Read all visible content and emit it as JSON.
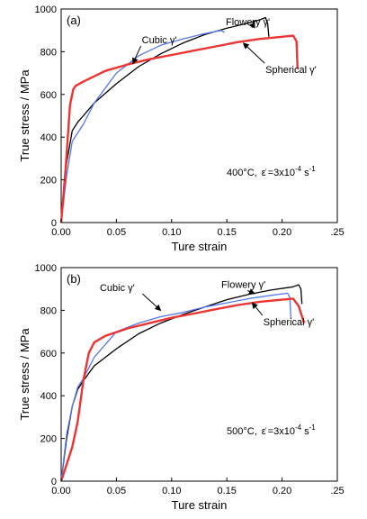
{
  "chart_data": [
    {
      "type": "line",
      "panel_label": "(a)",
      "xlabel": "Ture strain",
      "ylabel": "True stress / MPa",
      "xlim": [
        0.0,
        0.25
      ],
      "ylim": [
        0,
        1000
      ],
      "xticks": [
        "0.00",
        "0.05",
        "0.10",
        "0.15",
        "0.20",
        ".25"
      ],
      "yticks": [
        "0",
        "200",
        "400",
        "600",
        "800",
        "1000"
      ],
      "condition": {
        "temp": "400",
        "unit": "°C,",
        "rate_prefix": "=3x10",
        "rate_exp": "-4",
        "rate_unit": " s",
        "rate_unit_exp": "-1"
      },
      "series": [
        {
          "name": "Flowery γ'",
          "color": "#000000",
          "x": [
            0,
            0.005,
            0.01,
            0.015,
            0.02,
            0.03,
            0.05,
            0.07,
            0.09,
            0.11,
            0.13,
            0.15,
            0.17,
            0.18,
            0.185,
            0.187,
            0.188
          ],
          "y": [
            0,
            280,
            430,
            470,
            500,
            560,
            650,
            730,
            790,
            840,
            880,
            910,
            935,
            950,
            960,
            930,
            870
          ]
        },
        {
          "name": "Cubic γ'",
          "color": "#5577ee",
          "x": [
            0,
            0.005,
            0.01,
            0.015,
            0.02,
            0.03,
            0.05,
            0.07,
            0.09,
            0.11,
            0.13,
            0.145,
            0.148
          ],
          "y": [
            0,
            220,
            380,
            420,
            460,
            560,
            700,
            780,
            830,
            860,
            885,
            900,
            890
          ]
        },
        {
          "name": "Spherical γ'",
          "color": "#ee3333",
          "x": [
            0,
            0.004,
            0.008,
            0.011,
            0.013,
            0.02,
            0.04,
            0.06,
            0.08,
            0.1,
            0.12,
            0.14,
            0.16,
            0.18,
            0.2,
            0.21,
            0.213,
            0.214
          ],
          "y": [
            0,
            250,
            550,
            625,
            640,
            660,
            710,
            740,
            765,
            785,
            805,
            825,
            845,
            860,
            870,
            875,
            850,
            720
          ]
        }
      ],
      "annotations": [
        {
          "label": "Flowery γ'",
          "x": 0.149,
          "y": 925,
          "arrow": [
            0.175,
            938
          ]
        },
        {
          "label": "Cubic γ'",
          "x": 0.073,
          "y": 840,
          "arrow": [
            0.065,
            745
          ]
        },
        {
          "label": "Spherical γ'",
          "x": 0.185,
          "y": 700,
          "arrow": [
            0.165,
            840
          ]
        }
      ]
    },
    {
      "type": "line",
      "panel_label": "(b)",
      "xlabel": "Ture strain",
      "ylabel": "True stress / MPa",
      "xlim": [
        0.0,
        0.25
      ],
      "ylim": [
        0,
        1000
      ],
      "xticks": [
        "0.00",
        "0.05",
        "0.10",
        "0.15",
        "0.20",
        ".25"
      ],
      "yticks": [
        "0",
        "200",
        "400",
        "600",
        "800",
        "1000"
      ],
      "condition": {
        "temp": "500",
        "unit": "°C,",
        "rate_prefix": "=3x10",
        "rate_exp": "-4",
        "rate_unit": " s",
        "rate_unit_exp": "-1"
      },
      "series": [
        {
          "name": "Flowery γ'",
          "color": "#000000",
          "x": [
            0,
            0.005,
            0.01,
            0.015,
            0.02,
            0.03,
            0.05,
            0.07,
            0.09,
            0.11,
            0.13,
            0.15,
            0.17,
            0.19,
            0.21,
            0.215,
            0.217,
            0.218
          ],
          "y": [
            0,
            200,
            350,
            430,
            470,
            540,
            620,
            690,
            740,
            780,
            815,
            850,
            875,
            895,
            910,
            920,
            900,
            830
          ]
        },
        {
          "name": "Cubic γ'",
          "color": "#5577ee",
          "x": [
            0,
            0.005,
            0.01,
            0.015,
            0.02,
            0.03,
            0.05,
            0.07,
            0.09,
            0.11,
            0.13,
            0.15,
            0.17,
            0.19,
            0.205,
            0.207,
            0.208
          ],
          "y": [
            0,
            220,
            350,
            440,
            480,
            580,
            700,
            740,
            770,
            790,
            815,
            835,
            855,
            870,
            880,
            860,
            760
          ]
        },
        {
          "name": "Spherical γ'",
          "color": "#ee3333",
          "x": [
            0,
            0.01,
            0.015,
            0.02,
            0.025,
            0.03,
            0.04,
            0.06,
            0.08,
            0.1,
            0.12,
            0.14,
            0.16,
            0.18,
            0.2,
            0.21,
            0.215,
            0.22
          ],
          "y": [
            0,
            160,
            280,
            470,
            600,
            650,
            680,
            715,
            740,
            765,
            785,
            805,
            825,
            840,
            850,
            855,
            820,
            740
          ]
        }
      ],
      "annotations": [
        {
          "label": "Flowery γ'",
          "x": 0.145,
          "y": 905,
          "arrow": [
            0.175,
            878
          ]
        },
        {
          "label": "Cubic γ'",
          "x": 0.035,
          "y": 890,
          "arrow": [
            0.09,
            800
          ]
        },
        {
          "label": "Spherical γ'",
          "x": 0.183,
          "y": 730,
          "arrow": [
            0.173,
            835
          ]
        }
      ]
    }
  ]
}
